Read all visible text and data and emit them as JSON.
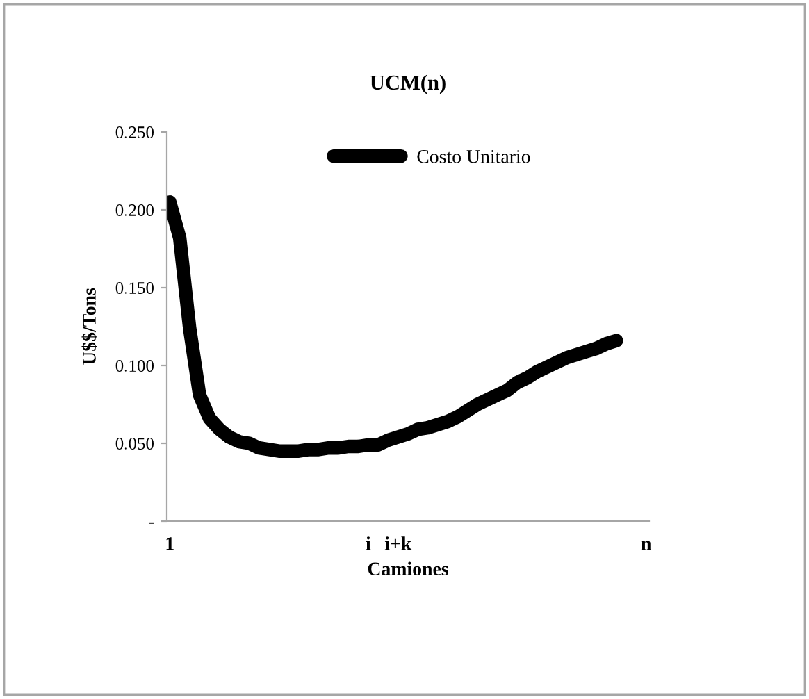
{
  "chart_data": {
    "type": "line",
    "title": "UCM(n)",
    "xlabel": "Camiones",
    "ylabel": "U$$/Tons",
    "categories": [
      "1",
      null,
      null,
      null,
      null,
      null,
      null,
      null,
      null,
      null,
      null,
      null,
      null,
      null,
      null,
      null,
      null,
      null,
      null,
      null,
      "i",
      null,
      null,
      "i+k",
      null,
      null,
      null,
      null,
      null,
      null,
      null,
      null,
      null,
      null,
      null,
      null,
      null,
      null,
      null,
      null,
      null,
      null,
      null,
      null,
      null,
      null,
      null,
      null,
      "n"
    ],
    "series": [
      {
        "name": "Costo Unitario",
        "color": "#000000",
        "values": [
          0.205,
          0.182,
          0.124,
          0.081,
          0.066,
          0.059,
          0.054,
          0.051,
          0.05,
          0.047,
          0.046,
          0.045,
          0.045,
          0.045,
          0.046,
          0.046,
          0.047,
          0.047,
          0.048,
          0.048,
          0.049,
          0.049,
          0.052,
          0.054,
          0.056,
          0.059,
          0.06,
          0.062,
          0.064,
          0.067,
          0.071,
          0.075,
          0.078,
          0.081,
          0.084,
          0.089,
          0.092,
          0.096,
          0.099,
          0.102,
          0.105,
          0.107,
          0.109,
          0.111,
          0.114,
          0.116,
          null,
          null,
          null
        ]
      }
    ],
    "ylim": [
      0,
      0.25
    ],
    "yticks": [
      {
        "value": 0,
        "label": "-"
      },
      {
        "value": 0.05,
        "label": "0.050"
      },
      {
        "value": 0.1,
        "label": "0.100"
      },
      {
        "value": 0.15,
        "label": "0.150"
      },
      {
        "value": 0.2,
        "label": "0.200"
      },
      {
        "value": 0.25,
        "label": "0.250"
      }
    ],
    "legend": "top",
    "grid": false,
    "marker": "none",
    "line_style": "solid"
  }
}
